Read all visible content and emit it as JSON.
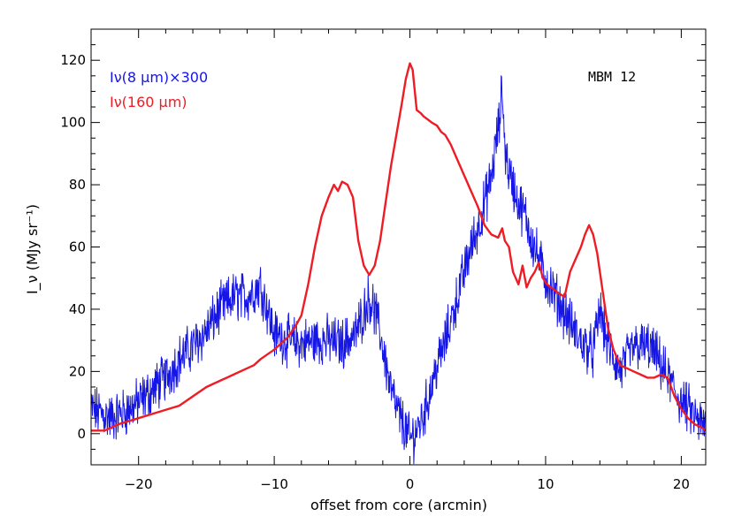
{
  "chart_data": {
    "type": "line",
    "xlabel": "offset from core (arcmin)",
    "ylabel": "I_ν (MJy sr⁻¹)",
    "xlim": [
      -23.5,
      21.8
    ],
    "ylim": [
      -10,
      130
    ],
    "xticks": [
      -20,
      -10,
      0,
      10,
      20
    ],
    "yticks": [
      0,
      20,
      40,
      60,
      80,
      100,
      120
    ],
    "grid": false,
    "legend_position": "top-left",
    "annotation": "MBM 12",
    "series": [
      {
        "name": "Iν(8 μm)×300",
        "color": "#1515e6",
        "noisy": true,
        "x": [
          -23.5,
          -22,
          -21,
          -20,
          -19,
          -18,
          -17,
          -16,
          -15,
          -14,
          -13,
          -12,
          -11,
          -10.5,
          -10,
          -9,
          -8,
          -7,
          -6,
          -5,
          -4,
          -3.5,
          -3,
          -2.5,
          -2,
          -1.5,
          -1,
          -0.5,
          0,
          0.5,
          1,
          1.5,
          2,
          2.5,
          3,
          3.5,
          4,
          4.5,
          5,
          5.5,
          6,
          6.3,
          6.6,
          6.8,
          7,
          7.3,
          7.6,
          8,
          8.5,
          9,
          9.5,
          10,
          10.5,
          11,
          11.5,
          12,
          12.5,
          13,
          13.5,
          14,
          14.5,
          15,
          15.5,
          16,
          16.5,
          17,
          17.5,
          18,
          18.5,
          19,
          19.5,
          20,
          20.5,
          21,
          21.5,
          21.8
        ],
        "y": [
          8,
          5,
          7,
          10,
          14,
          18,
          24,
          28,
          33,
          40,
          44,
          44,
          48,
          40,
          32,
          30,
          29,
          30,
          30,
          29,
          32,
          38,
          44,
          38,
          28,
          16,
          8,
          3,
          -2,
          1,
          6,
          14,
          22,
          28,
          36,
          44,
          52,
          60,
          66,
          74,
          82,
          92,
          100,
          112,
          92,
          84,
          80,
          74,
          70,
          62,
          56,
          50,
          46,
          42,
          38,
          34,
          30,
          28,
          26,
          40,
          30,
          24,
          20,
          24,
          28,
          28,
          28,
          26,
          22,
          18,
          14,
          10,
          8,
          5,
          3,
          2
        ]
      },
      {
        "name": "Iν(160 μm)",
        "color": "#ee1c24",
        "noisy": false,
        "x": [
          -23.5,
          -22.5,
          -21.5,
          -20,
          -18.5,
          -17,
          -16,
          -15,
          -14,
          -13,
          -12,
          -11.5,
          -11,
          -10,
          -9,
          -8.5,
          -8,
          -7.5,
          -7,
          -6.5,
          -6,
          -5.6,
          -5.3,
          -5,
          -4.6,
          -4.2,
          -3.8,
          -3.4,
          -3,
          -2.6,
          -2.2,
          -1.8,
          -1.4,
          -1,
          -0.6,
          -0.3,
          0,
          0.2,
          0.5,
          0.8,
          1,
          1.3,
          1.6,
          2,
          2.3,
          2.6,
          3,
          3.5,
          4,
          4.5,
          5,
          5.5,
          6,
          6.5,
          6.8,
          7,
          7.3,
          7.6,
          8,
          8.3,
          8.6,
          8.9,
          9.2,
          9.5,
          9.8,
          10.1,
          10.4,
          10.7,
          11,
          11.4,
          11.8,
          12.2,
          12.6,
          12.9,
          13.2,
          13.5,
          13.8,
          14.2,
          14.6,
          15,
          15.5,
          16,
          16.5,
          17,
          17.5,
          18,
          18.5,
          19,
          19.5,
          20,
          20.5,
          21,
          21.5,
          21.8
        ],
        "y": [
          1,
          1,
          3,
          5,
          7,
          9,
          12,
          15,
          17,
          19,
          21,
          22,
          24,
          27,
          31,
          34,
          38,
          48,
          60,
          70,
          76,
          80,
          78,
          81,
          80,
          76,
          62,
          54,
          51,
          54,
          62,
          74,
          86,
          96,
          106,
          114,
          119,
          117,
          104,
          103,
          102,
          101,
          100,
          99,
          97,
          96,
          93,
          88,
          83,
          78,
          73,
          67,
          64,
          63,
          66,
          62,
          60,
          52,
          48,
          54,
          47,
          50,
          52,
          55,
          50,
          48,
          47,
          46,
          45,
          44,
          52,
          56,
          60,
          64,
          67,
          64,
          58,
          46,
          34,
          27,
          22,
          21,
          20,
          19,
          18,
          18,
          19,
          18,
          12,
          8,
          5,
          3,
          2,
          1
        ]
      }
    ]
  }
}
